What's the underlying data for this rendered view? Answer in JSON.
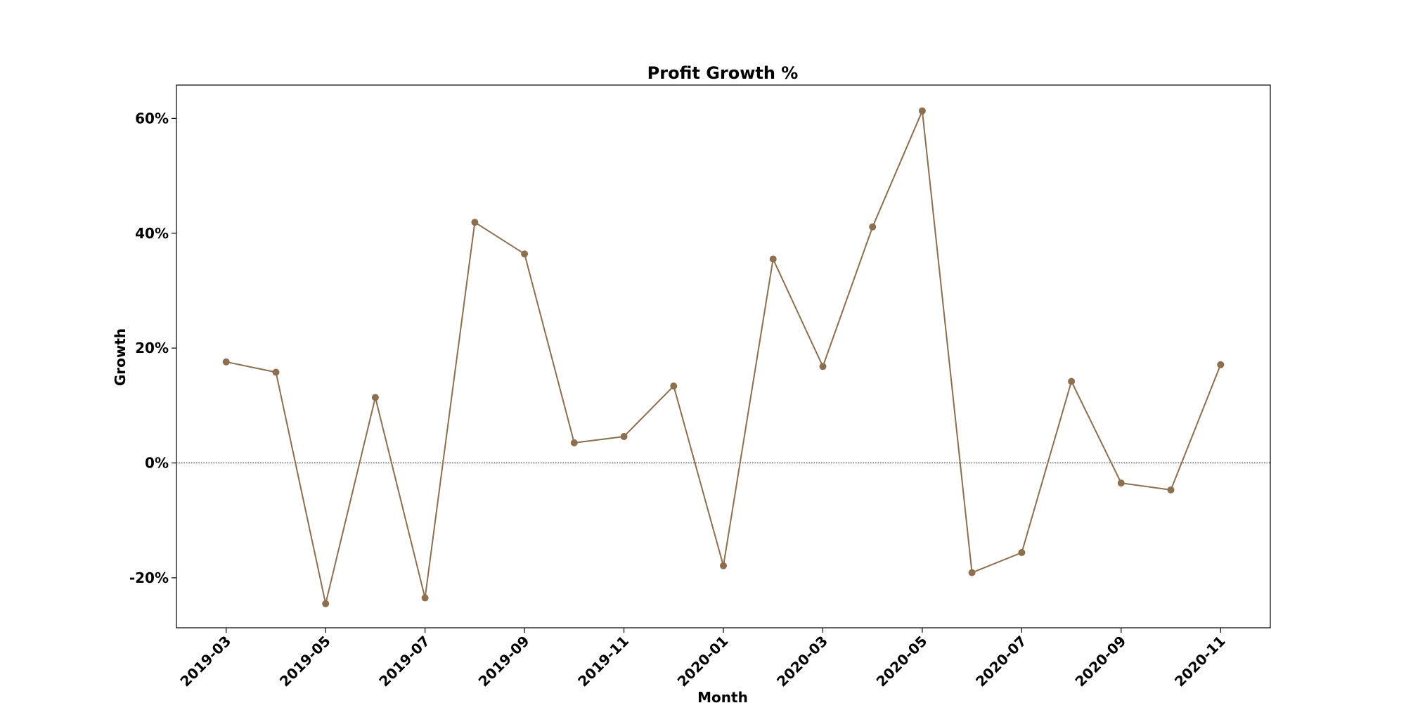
{
  "chart_data": {
    "type": "line",
    "title": "Profit Growth %",
    "xlabel": "Month",
    "ylabel": "Growth",
    "x": [
      "2019-03",
      "2019-04",
      "2019-05",
      "2019-06",
      "2019-07",
      "2019-08",
      "2019-09",
      "2019-10",
      "2019-11",
      "2019-12",
      "2020-01",
      "2020-02",
      "2020-03",
      "2020-04",
      "2020-05",
      "2020-06",
      "2020-07",
      "2020-08",
      "2020-09",
      "2020-10",
      "2020-11"
    ],
    "series": [
      {
        "values": [
          17.6,
          15.8,
          -24.5,
          11.4,
          -23.5,
          41.9,
          36.4,
          3.5,
          4.6,
          13.4,
          -17.9,
          35.5,
          16.8,
          41.1,
          61.3,
          -19.1,
          -15.6,
          14.2,
          -3.5,
          -4.7,
          17.1
        ],
        "color": "#8b6f4e"
      }
    ],
    "xticks": [
      "2019-03",
      "2019-05",
      "2019-07",
      "2019-09",
      "2019-11",
      "2020-01",
      "2020-03",
      "2020-05",
      "2020-07",
      "2020-09",
      "2020-11"
    ],
    "yticks": [
      -20,
      0,
      20,
      40,
      60
    ],
    "ytick_labels": [
      "-20%",
      "0%",
      "20%",
      "40%",
      "60%"
    ],
    "ylim": [
      -28.7,
      65.8
    ],
    "xlim": [
      "2019-02",
      "2020-12"
    ],
    "reference_line": {
      "y": 0,
      "style": "dotted"
    },
    "grid": false,
    "legend": "none"
  }
}
